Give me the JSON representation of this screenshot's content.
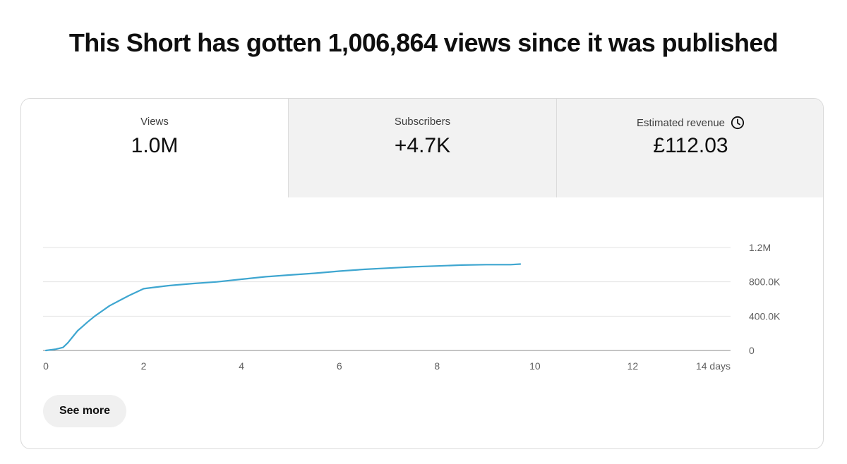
{
  "headline": "This Short has gotten 1,006,864 views since it was published",
  "tabs": [
    {
      "label": "Views",
      "value": "1.0M"
    },
    {
      "label": "Subscribers",
      "value": "+4.7K"
    },
    {
      "label": "Estimated revenue",
      "value": "£112.03",
      "icon": "clock-icon"
    }
  ],
  "chart_data": {
    "type": "line",
    "xlim": [
      0,
      14
    ],
    "ylim": [
      0,
      1200000
    ],
    "x_ticks": [
      0,
      2,
      4,
      6,
      8,
      10,
      12
    ],
    "x_tick_labels": [
      "0",
      "2",
      "4",
      "6",
      "8",
      "10",
      "12",
      "14 days"
    ],
    "x_tick_positions": [
      0,
      2,
      4,
      6,
      8,
      10,
      12,
      14
    ],
    "y_ticks": [
      0,
      400000,
      800000,
      1200000
    ],
    "y_tick_labels": [
      "0",
      "400.0K",
      "800.0K",
      "1.2M"
    ],
    "grid": true,
    "line_color": "#3ea6d0",
    "series": [
      {
        "x": [
          0,
          0.2,
          0.35,
          0.45,
          0.55,
          0.65,
          0.75,
          0.85,
          1.0,
          1.15,
          1.3,
          1.5,
          1.7,
          1.85,
          2.0,
          2.2,
          2.5,
          3.0,
          3.5,
          4.0,
          4.5,
          5.0,
          5.5,
          6.0,
          6.5,
          7.0,
          7.5,
          8.0,
          8.5,
          9.0,
          9.5,
          9.7
        ],
        "y": [
          0,
          15000,
          35000,
          90000,
          160000,
          230000,
          280000,
          330000,
          400000,
          460000,
          520000,
          580000,
          640000,
          680000,
          720000,
          735000,
          755000,
          780000,
          800000,
          830000,
          860000,
          880000,
          900000,
          925000,
          945000,
          960000,
          975000,
          985000,
          995000,
          1000000,
          1000000,
          1006864
        ]
      }
    ]
  },
  "see_more_label": "See more"
}
